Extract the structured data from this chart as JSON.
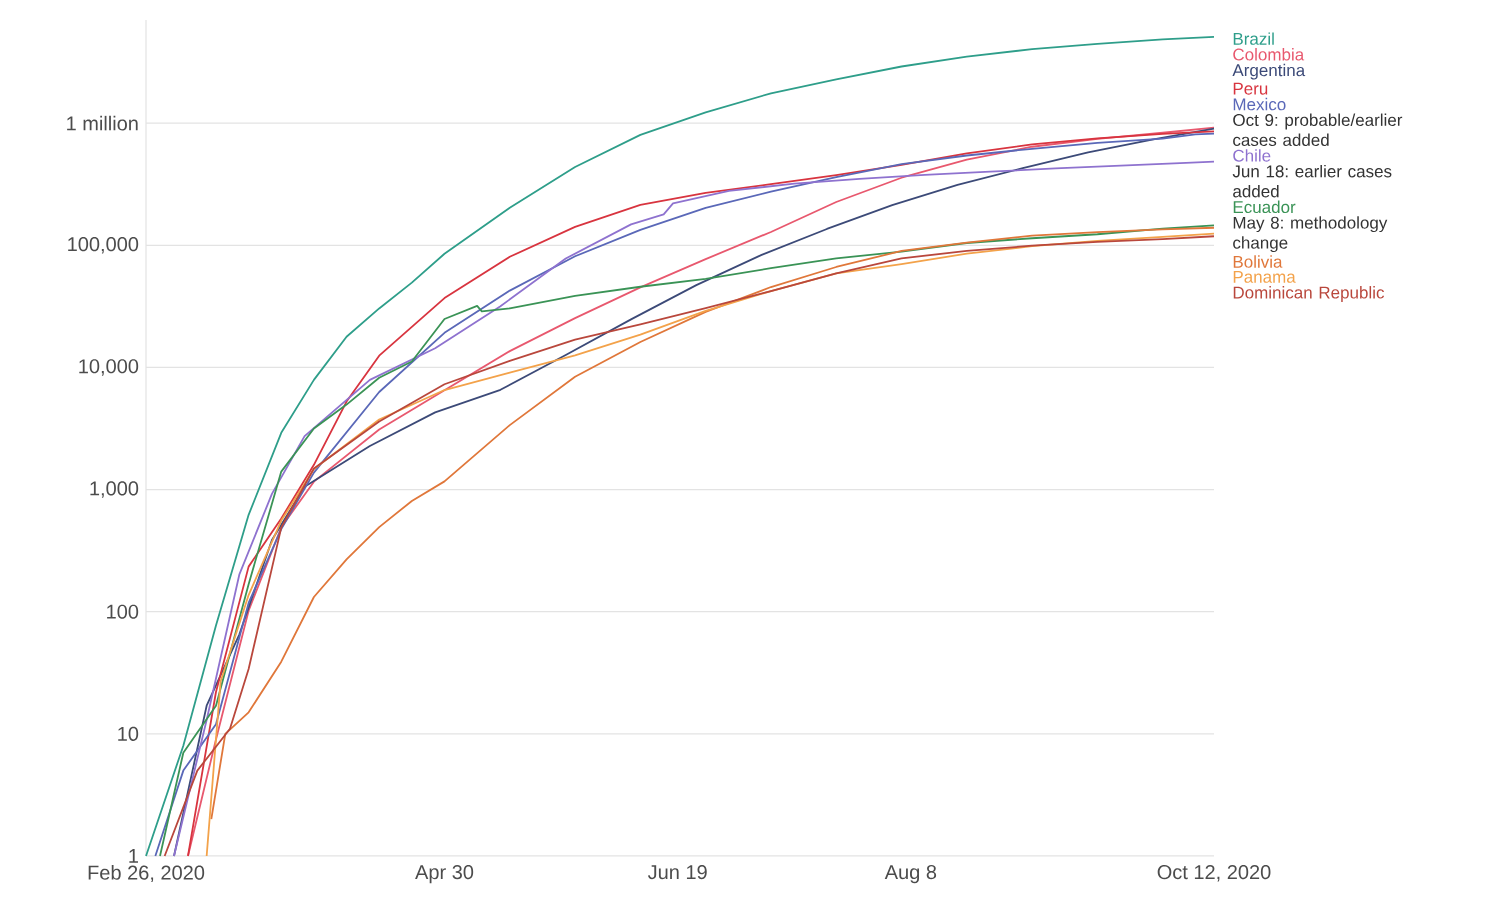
{
  "chart_data": {
    "type": "line",
    "log": "y",
    "grid": "y",
    "xlim": [
      "2020-02-26",
      "2020-10-12"
    ],
    "xticks": [
      {
        "value": "2020-02-26",
        "label": "Feb 26, 2020"
      },
      {
        "value": "2020-04-30",
        "label": "Apr 30"
      },
      {
        "value": "2020-06-19",
        "label": "Jun 19"
      },
      {
        "value": "2020-08-08",
        "label": "Aug 8"
      },
      {
        "value": "2020-10-12",
        "label": "Oct 12, 2020"
      }
    ],
    "ylim": [
      1,
      7000000
    ],
    "yticks": [
      1,
      10,
      100,
      {
        "value": 1000,
        "label": "1,000"
      },
      {
        "value": 10000,
        "label": "10,000"
      },
      {
        "value": 100000,
        "label": "100,000"
      },
      {
        "value": 1000000,
        "label": "1 million"
      }
    ],
    "series": [
      {
        "name": "Brazil",
        "color": "#2e9e8a",
        "x": [
          "2020-02-26",
          "2020-03-05",
          "2020-03-12",
          "2020-03-19",
          "2020-03-26",
          "2020-04-02",
          "2020-04-09",
          "2020-04-16",
          "2020-04-23",
          "2020-04-30",
          "2020-05-14",
          "2020-05-28",
          "2020-06-11",
          "2020-06-25",
          "2020-07-09",
          "2020-07-23",
          "2020-08-06",
          "2020-08-20",
          "2020-09-03",
          "2020-09-17",
          "2020-10-01",
          "2020-10-12"
        ],
        "values": [
          1,
          8,
          77,
          621,
          2915,
          7910,
          17857,
          30425,
          49492,
          85380,
          202918,
          438238,
          802828,
          1228114,
          1755779,
          2287475,
          2912212,
          3501975,
          4041638,
          4455386,
          4847092,
          5094979
        ]
      },
      {
        "name": "Colombia",
        "color": "#e8586e",
        "x": [
          "2020-03-06",
          "2020-03-12",
          "2020-03-19",
          "2020-03-26",
          "2020-04-02",
          "2020-04-16",
          "2020-04-30",
          "2020-05-14",
          "2020-05-28",
          "2020-06-11",
          "2020-06-25",
          "2020-07-09",
          "2020-07-23",
          "2020-08-06",
          "2020-08-20",
          "2020-09-03",
          "2020-09-17",
          "2020-10-01",
          "2020-10-12"
        ],
        "values": [
          1,
          9,
          102,
          491,
          1161,
          3105,
          6507,
          13610,
          25366,
          45212,
          77113,
          128638,
          226373,
          357710,
          502178,
          641574,
          743945,
          835339,
          919083
        ]
      },
      {
        "name": "Argentina",
        "color": "#3c4a78",
        "x": [
          "2020-03-03",
          "2020-03-10",
          "2020-03-17",
          "2020-03-24",
          "2020-03-31",
          "2020-04-14",
          "2020-04-28",
          "2020-05-12",
          "2020-05-26",
          "2020-06-09",
          "2020-06-23",
          "2020-07-07",
          "2020-07-21",
          "2020-08-04",
          "2020-08-18",
          "2020-09-01",
          "2020-09-15",
          "2020-09-29",
          "2020-10-12"
        ],
        "values": [
          1,
          17,
          65,
          387,
          1054,
          2277,
          4285,
          6563,
          12628,
          24761,
          47203,
          83426,
          136118,
          213535,
          312659,
          428239,
          577338,
          736609,
          903730
        ]
      },
      {
        "name": "Peru",
        "color": "#d8343f",
        "x": [
          "2020-03-06",
          "2020-03-12",
          "2020-03-19",
          "2020-03-26",
          "2020-04-02",
          "2020-04-09",
          "2020-04-16",
          "2020-04-30",
          "2020-05-14",
          "2020-05-28",
          "2020-06-11",
          "2020-06-25",
          "2020-07-09",
          "2020-07-23",
          "2020-08-06",
          "2020-08-20",
          "2020-09-03",
          "2020-09-17",
          "2020-10-01",
          "2020-10-12"
        ],
        "values": [
          1,
          22,
          234,
          580,
          1595,
          5256,
          12491,
          36976,
          80604,
          141779,
          214788,
          268602,
          316448,
          375961,
          455409,
          567059,
          670145,
          750098,
          818297,
          856951
        ]
      },
      {
        "name": "Mexico",
        "color": "#5a68b8",
        "x": [
          "2020-02-28",
          "2020-03-05",
          "2020-03-12",
          "2020-03-19",
          "2020-03-26",
          "2020-04-02",
          "2020-04-16",
          "2020-04-30",
          "2020-05-14",
          "2020-05-28",
          "2020-06-11",
          "2020-06-25",
          "2020-07-09",
          "2020-07-23",
          "2020-08-06",
          "2020-08-20",
          "2020-09-03",
          "2020-09-17",
          "2020-10-01",
          "2020-10-08",
          "2020-10-12"
        ],
        "values": [
          1,
          5,
          12,
          118,
          475,
          1378,
          6297,
          19224,
          42595,
          81400,
          133974,
          202951,
          275003,
          362274,
          462690,
          543806,
          616894,
          688954,
          748315,
          809751,
          821045
        ]
      },
      {
        "name": "Chile",
        "color": "#8e72cf",
        "x": [
          "2020-03-03",
          "2020-03-10",
          "2020-03-17",
          "2020-03-24",
          "2020-03-31",
          "2020-04-14",
          "2020-04-28",
          "2020-05-12",
          "2020-05-26",
          "2020-06-09",
          "2020-06-16",
          "2020-06-18",
          "2020-06-30",
          "2020-07-14",
          "2020-07-28",
          "2020-08-11",
          "2020-08-25",
          "2020-09-08",
          "2020-09-22",
          "2020-10-06",
          "2020-10-12"
        ],
        "values": [
          1,
          13,
          201,
          922,
          2738,
          7917,
          14365,
          31721,
          77961,
          148496,
          179436,
          220628,
          279393,
          319493,
          349800,
          378168,
          400985,
          426108,
          449903,
          473300,
          484062
        ]
      },
      {
        "name": "Ecuador",
        "color": "#3a9356",
        "x": [
          "2020-02-29",
          "2020-03-05",
          "2020-03-12",
          "2020-03-19",
          "2020-03-26",
          "2020-04-02",
          "2020-04-09",
          "2020-04-16",
          "2020-04-23",
          "2020-04-30",
          "2020-05-07",
          "2020-05-08",
          "2020-05-14",
          "2020-05-28",
          "2020-06-11",
          "2020-06-25",
          "2020-07-09",
          "2020-07-23",
          "2020-08-06",
          "2020-08-20",
          "2020-09-03",
          "2020-09-17",
          "2020-10-01",
          "2020-10-12"
        ],
        "values": [
          1,
          7,
          17,
          168,
          1403,
          3163,
          4965,
          8225,
          11183,
          24934,
          31881,
          28818,
          30502,
          38571,
          45778,
          53156,
          65018,
          78148,
          88866,
          104475,
          114278,
          123225,
          137047,
          145528
        ]
      },
      {
        "name": "Bolivia",
        "color": "#e0773a",
        "x": [
          "2020-03-11",
          "2020-03-14",
          "2020-03-19",
          "2020-03-26",
          "2020-04-02",
          "2020-04-09",
          "2020-04-16",
          "2020-04-23",
          "2020-04-30",
          "2020-05-14",
          "2020-05-28",
          "2020-06-11",
          "2020-06-25",
          "2020-07-09",
          "2020-07-23",
          "2020-08-06",
          "2020-08-20",
          "2020-09-03",
          "2020-09-17",
          "2020-10-01",
          "2020-10-12"
        ],
        "values": [
          2,
          10,
          15,
          39,
          132,
          268,
          493,
          807,
          1167,
          3372,
          8387,
          16165,
          28503,
          45565,
          66456,
          89999,
          105050,
          120241,
          128286,
          135311,
          139319
        ]
      },
      {
        "name": "Panama",
        "color": "#f3a24a",
        "x": [
          "2020-03-10",
          "2020-03-13",
          "2020-03-19",
          "2020-03-26",
          "2020-04-02",
          "2020-04-16",
          "2020-04-30",
          "2020-05-14",
          "2020-05-28",
          "2020-06-11",
          "2020-06-25",
          "2020-07-09",
          "2020-07-23",
          "2020-08-06",
          "2020-08-20",
          "2020-09-03",
          "2020-09-17",
          "2020-10-01",
          "2020-10-12"
        ],
        "values": [
          1,
          27,
          137,
          558,
          1475,
          3751,
          6532,
          9077,
          12531,
          18586,
          29037,
          42216,
          58864,
          70231,
          85480,
          98407,
          108726,
          117300,
          124745
        ]
      },
      {
        "name": "Dominican Republic",
        "color": "#b9473c",
        "x": [
          "2020-03-01",
          "2020-03-08",
          "2020-03-15",
          "2020-03-19",
          "2020-03-26",
          "2020-04-02",
          "2020-04-16",
          "2020-04-30",
          "2020-05-14",
          "2020-05-28",
          "2020-06-11",
          "2020-06-25",
          "2020-07-09",
          "2020-07-23",
          "2020-08-06",
          "2020-08-20",
          "2020-09-03",
          "2020-09-17",
          "2020-10-01",
          "2020-10-12"
        ],
        "values": [
          1,
          5,
          11,
          34,
          488,
          1488,
          3614,
          7288,
          11320,
          16908,
          22572,
          30619,
          42237,
          58978,
          78219,
          90019,
          99342,
          106708,
          112312,
          118617
        ]
      }
    ],
    "annotations": [
      "Oct 9: probable/earlier cases added",
      "Jun 18: earlier cases added",
      "May 8: methodology change"
    ]
  }
}
